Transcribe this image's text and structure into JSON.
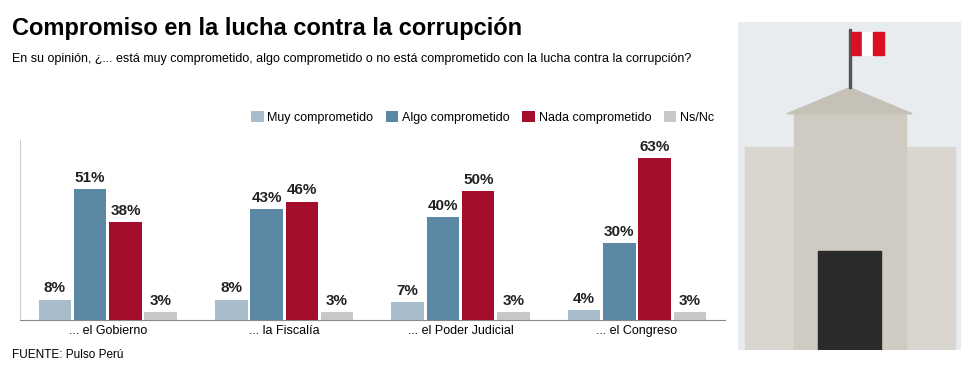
{
  "chart_data": {
    "type": "bar",
    "title": "Compromiso en la lucha contra la corrupción",
    "subtitle": "En su opinión, ¿... está muy comprometido, algo comprometido o no está comprometido con la lucha contra la corrupción?",
    "categories": [
      "... el Gobierno",
      "... la Fiscalía",
      "... el Poder Judicial",
      "... el Congreso"
    ],
    "series": [
      {
        "name": "Muy comprometido",
        "color": "#a9bccb",
        "values": [
          8,
          8,
          7,
          4
        ],
        "value_labels": [
          "8%",
          "8%",
          "7%",
          "4%"
        ]
      },
      {
        "name": "Algo comprometido",
        "color": "#5b88a5",
        "values": [
          51,
          43,
          40,
          30
        ],
        "value_labels": [
          "51%",
          "43%",
          "40%",
          "30%"
        ]
      },
      {
        "name": "Nada comprometido",
        "color": "#a50d2d",
        "values": [
          38,
          46,
          50,
          63
        ],
        "value_labels": [
          "38%",
          "46%",
          "50%",
          "63%"
        ]
      },
      {
        "name": "Ns/Nc",
        "color": "#c8c8c8",
        "values": [
          3,
          3,
          3,
          3
        ],
        "value_labels": [
          "3%",
          "3%",
          "3%",
          "3%"
        ]
      }
    ],
    "ylim": [
      0,
      70
    ],
    "yticks": [],
    "data_labels": true,
    "tick_labels": "x",
    "legend": "upper right",
    "grid": false,
    "source": "FUENTE: Pulso Perú"
  }
}
